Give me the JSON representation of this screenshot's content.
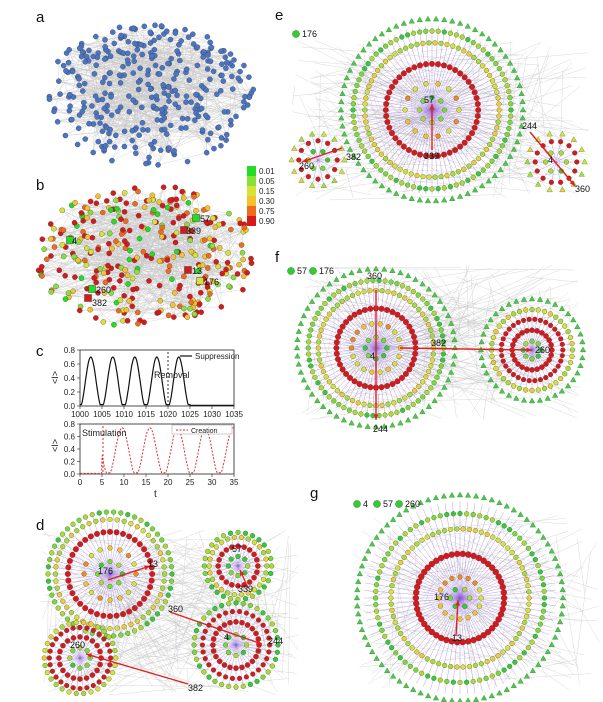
{
  "panels": {
    "a": {
      "label": "a"
    },
    "b": {
      "label": "b",
      "node_labels": [
        "57",
        "339",
        "4",
        "13",
        "176",
        "260",
        "382"
      ],
      "colorbar_ticks": [
        "0.01",
        "0.05",
        "0.15",
        "0.30",
        "0.75",
        "0.90"
      ]
    },
    "c": {
      "label": "c",
      "ylabel": "<I>",
      "xlabel": "t",
      "top": {
        "legend": "Suppression",
        "annotation": "Removal",
        "xticks": [
          "1000",
          "1005",
          "1010",
          "1015",
          "1020",
          "1025",
          "1030",
          "1035"
        ],
        "yticks": [
          "0.0",
          "0.2",
          "0.4",
          "0.6",
          "0.8"
        ]
      },
      "bottom": {
        "legend": "Creation",
        "annotation": "Stimulation",
        "xticks": [
          "0",
          "5",
          "10",
          "15",
          "20",
          "25",
          "30",
          "35"
        ],
        "yticks": [
          "0.0",
          "0.2",
          "0.4",
          "0.6",
          "0.8"
        ]
      }
    },
    "d": {
      "label": "d",
      "node_labels": [
        "176",
        "13",
        "57",
        "339",
        "360",
        "4",
        "244",
        "260",
        "382"
      ]
    },
    "e": {
      "label": "e",
      "legend_labels": [
        "176"
      ],
      "node_labels": [
        "57",
        "339",
        "244",
        "260",
        "382",
        "4",
        "360"
      ]
    },
    "f": {
      "label": "f",
      "legend_labels": [
        "57",
        "176"
      ],
      "node_labels": [
        "360",
        "4",
        "382",
        "260",
        "244"
      ]
    },
    "g": {
      "label": "g",
      "legend_labels": [
        "4",
        "57",
        "260"
      ],
      "node_labels": [
        "176",
        "13"
      ]
    }
  },
  "colors": {
    "node_blue": "#4a74c4",
    "edge_gray": "#c8c8c8",
    "edge_purple": "#8a5ed8",
    "node_red": "#d7191c",
    "node_green": "#33cc33",
    "arrow_red": "#e0201c"
  }
}
